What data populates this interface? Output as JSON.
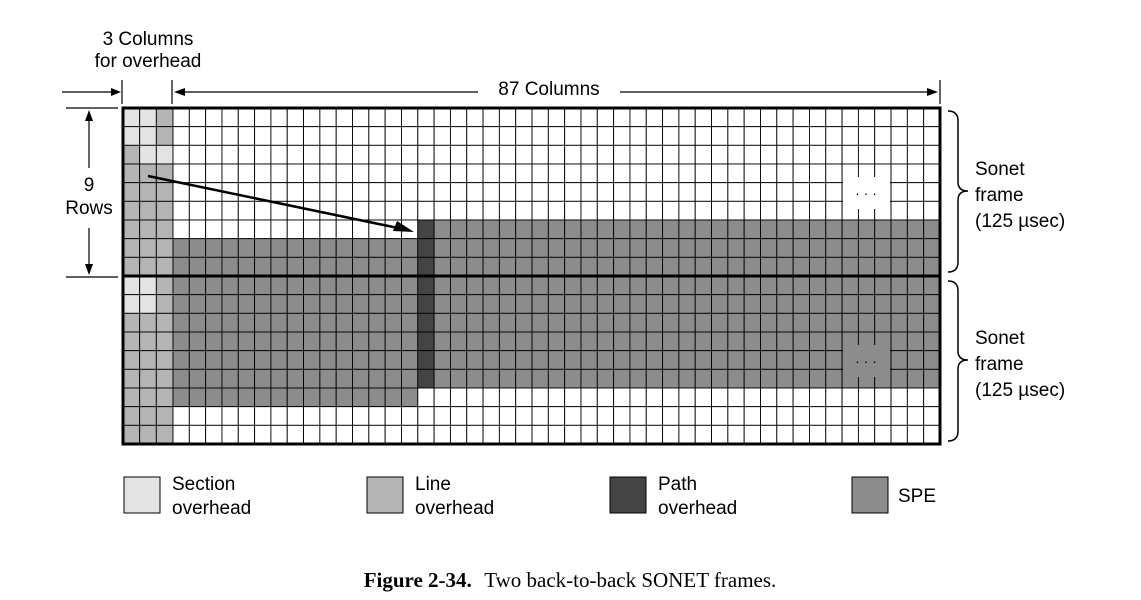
{
  "labels": {
    "overhead_cols_line1": "3 Columns",
    "overhead_cols_line2": "for overhead",
    "payload_cols": "87 Columns",
    "rows_line1": "9",
    "rows_line2": "Rows",
    "ellipsis": "· · ·"
  },
  "frames": [
    {
      "line1": "Sonet",
      "line2": "frame",
      "line3": "(125 µsec)"
    },
    {
      "line1": "Sonet",
      "line2": "frame",
      "line3": "(125 µsec)"
    }
  ],
  "legend": [
    {
      "line1": "Section",
      "line2": "overhead",
      "color": "#e3e3e3"
    },
    {
      "line1": "Line",
      "line2": "overhead",
      "color": "#b4b4b4"
    },
    {
      "line1": "Path",
      "line2": "overhead",
      "color": "#444444"
    },
    {
      "line1": "SPE",
      "line2": "",
      "color": "#8c8c8c"
    }
  ],
  "caption": {
    "label": "Figure 2-34.",
    "text": "Two back-to-back SONET frames."
  }
}
